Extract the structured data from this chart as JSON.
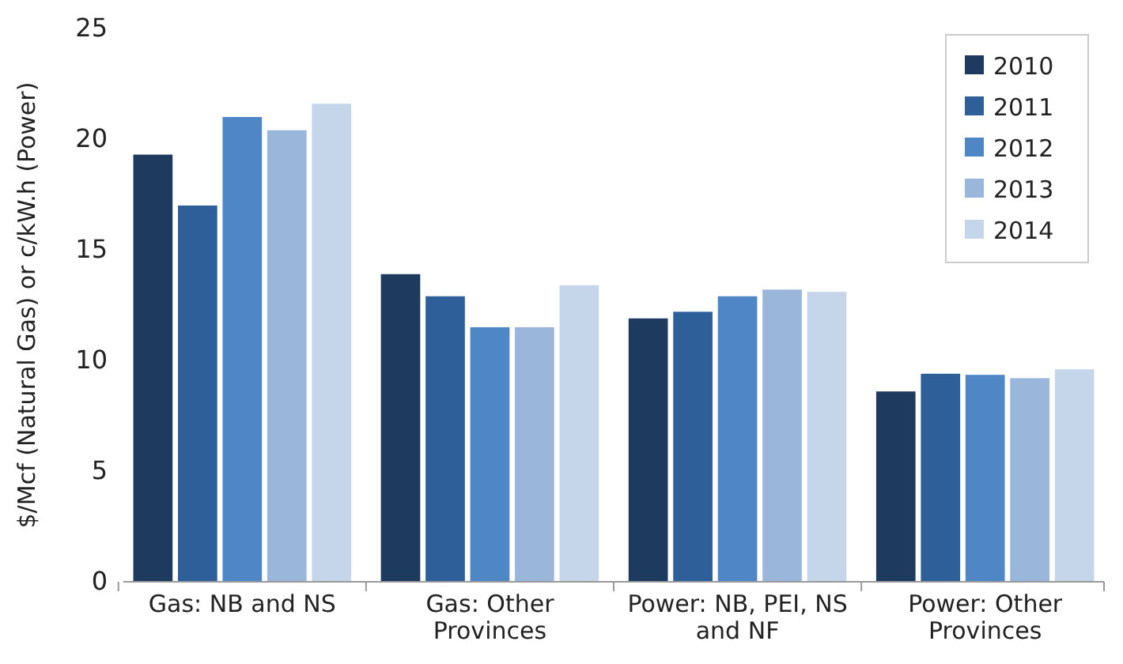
{
  "chart_data": {
    "type": "bar",
    "ylabel": "$/Mcf (Natural Gas) or c/kW.h (Power)",
    "categories": [
      "Gas: NB and NS",
      "Gas: Other Provinces",
      "Power: NB, PEI, NS and NF",
      "Power: Other Provinces"
    ],
    "series": [
      {
        "name": "2010",
        "color": "#1f3a5f",
        "values": [
          19.3,
          13.9,
          11.9,
          8.6
        ]
      },
      {
        "name": "2011",
        "color": "#2e5f99",
        "values": [
          17.0,
          12.9,
          12.2,
          9.4
        ]
      },
      {
        "name": "2012",
        "color": "#4f87c6",
        "values": [
          21.0,
          11.5,
          12.9,
          9.35
        ]
      },
      {
        "name": "2013",
        "color": "#9bb6db",
        "values": [
          20.4,
          11.5,
          13.2,
          9.2
        ]
      },
      {
        "name": "2014",
        "color": "#c5d6ea",
        "values": [
          21.6,
          13.4,
          13.1,
          9.6
        ]
      }
    ],
    "ylim": [
      0,
      25
    ],
    "yticks": [
      0,
      5,
      10,
      15,
      20,
      25
    ],
    "grid": false,
    "legend": "top right"
  }
}
